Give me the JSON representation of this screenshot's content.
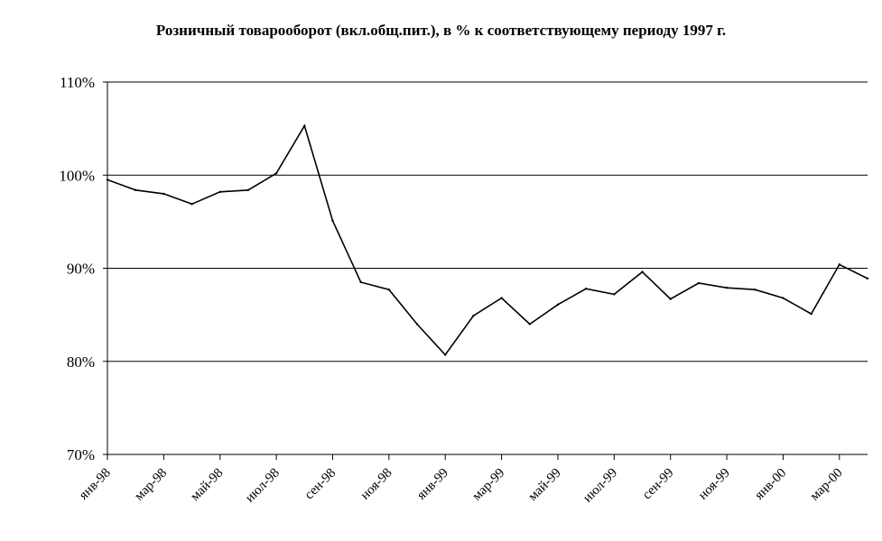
{
  "chart_data": {
    "type": "line",
    "title": "Розничный товарооборот (вкл.общ.пит.),  в % к соответствующему периоду 1997 г.",
    "xlabel": "",
    "ylabel": "",
    "ylim": [
      70,
      110
    ],
    "yticks": [
      "70%",
      "80%",
      "90%",
      "100%",
      "110%"
    ],
    "grid": "horizontal",
    "x_tick_labels": [
      "янв-98",
      "мар-98",
      "май-98",
      "июл-98",
      "сен-98",
      "ноя-98",
      "янв-99",
      "мар-99",
      "май-99",
      "июл-99",
      "сен-99",
      "ноя-99",
      "янв-00",
      "мар-00"
    ],
    "x": [
      "янв-98",
      "фев-98",
      "мар-98",
      "апр-98",
      "май-98",
      "июн-98",
      "июл-98",
      "авг-98",
      "сен-98",
      "окт-98",
      "ноя-98",
      "дек-98",
      "янв-99",
      "фев-99",
      "мар-99",
      "апр-99",
      "май-99",
      "июн-99",
      "июл-99",
      "авг-99",
      "сен-99",
      "окт-99",
      "ноя-99",
      "дек-99",
      "янв-00",
      "фев-00",
      "мар-00",
      "апр-00"
    ],
    "series": [
      {
        "name": "",
        "color": "#000000",
        "values": [
          99.5,
          98.4,
          98.0,
          96.9,
          98.2,
          98.4,
          100.2,
          105.3,
          95.1,
          88.5,
          87.7,
          84.0,
          80.7,
          84.9,
          86.8,
          84.0,
          86.1,
          87.8,
          87.2,
          89.6,
          86.7,
          88.4,
          87.9,
          87.7,
          86.8,
          85.1,
          90.4,
          88.9
        ]
      }
    ]
  }
}
